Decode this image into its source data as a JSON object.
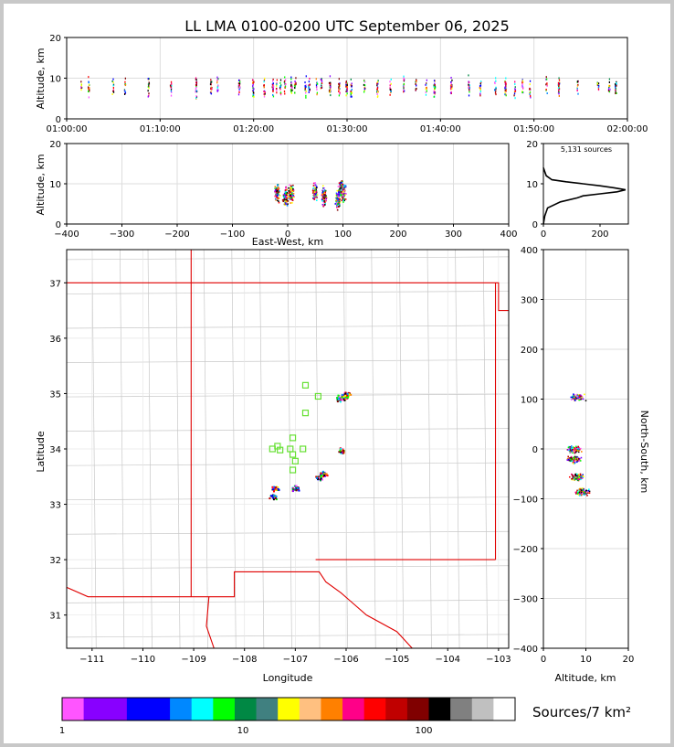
{
  "title": "LL LMA 0100-0200 UTC September 06, 2025",
  "colorbar": {
    "label": "Sources/7 km²",
    "tick_labels": [
      "1",
      "10",
      "100"
    ],
    "colors": [
      "#ff55ff",
      "#8800ff",
      "#8800ff",
      "#0000ff",
      "#0000ff",
      "#0088ff",
      "#00ffff",
      "#00ff00",
      "#008844",
      "#408080",
      "#ffff00",
      "#ffc080",
      "#ff8000",
      "#ff0088",
      "#ff0000",
      "#c00000",
      "#800000",
      "#000000",
      "#808080",
      "#c0c0c0",
      "#ffffff"
    ]
  },
  "chart_data": [
    {
      "id": "time_height",
      "type": "scatter",
      "xlabel": "",
      "ylabel": "Altitude, km",
      "ylim": [
        0,
        20
      ],
      "y_ticks": [
        "0",
        "10",
        "20"
      ],
      "x_ticks": [
        "01:00:00",
        "01:10:00",
        "01:20:00",
        "01:30:00",
        "01:40:00",
        "01:50:00",
        "02:00:00"
      ],
      "xlim_minutes": [
        0,
        60
      ],
      "grid": true,
      "column_minutes": [
        1.5,
        2.3,
        4.9,
        6.2,
        8.7,
        11.1,
        13.8,
        15.4,
        16.1,
        18.4,
        19.9,
        21.1,
        22,
        22.4,
        22.8,
        23.3,
        24,
        24.4,
        25.5,
        25.9,
        26.7,
        27.2,
        28.1,
        29.1,
        29.9,
        30.4,
        31.8,
        33.2,
        34.6,
        36,
        37.3,
        38.4,
        39.3,
        41.1,
        43,
        44.2,
        45.8,
        46.9,
        47.9,
        48.7,
        49.5,
        51.3,
        52.6,
        54.6,
        56.8,
        58,
        58.7
      ]
    },
    {
      "id": "ew_height",
      "type": "scatter",
      "xlabel": "East-West, km",
      "ylabel": "Altitude, km",
      "xlim": [
        -400,
        400
      ],
      "ylim": [
        0,
        20
      ],
      "x_ticks": [
        "−400",
        "−300",
        "−200",
        "−100",
        "0",
        "100",
        "200",
        "300",
        "400"
      ],
      "y_ticks": [
        "0",
        "10",
        "20"
      ],
      "grid": true,
      "clusters": [
        [
          -20,
          8
        ],
        [
          5,
          8
        ],
        [
          -5,
          7
        ],
        [
          48,
          8
        ],
        [
          65,
          7
        ],
        [
          95,
          9
        ],
        [
          90,
          6
        ],
        [
          100,
          8
        ]
      ]
    },
    {
      "id": "altitude_histogram",
      "type": "line",
      "annotation": "5,131 sources",
      "xlim": [
        0,
        300
      ],
      "ylim": [
        0,
        20
      ],
      "x_ticks": [
        "0",
        "200"
      ],
      "y_ticks": [
        "0",
        "10",
        "20"
      ],
      "profile": [
        [
          0,
          0
        ],
        [
          5,
          2
        ],
        [
          15,
          4
        ],
        [
          60,
          5.5
        ],
        [
          120,
          6.5
        ],
        [
          140,
          7
        ],
        [
          200,
          7.5
        ],
        [
          260,
          8
        ],
        [
          290,
          8.5
        ],
        [
          250,
          9
        ],
        [
          200,
          9.5
        ],
        [
          140,
          10
        ],
        [
          80,
          10.5
        ],
        [
          30,
          11
        ],
        [
          10,
          12
        ],
        [
          5,
          13
        ],
        [
          0,
          14
        ]
      ]
    },
    {
      "id": "plan_view",
      "type": "scatter",
      "xlabel": "Longitude",
      "ylabel": "Latitude",
      "xlim": [
        -111.5,
        -102.8
      ],
      "ylim": [
        30.4,
        37.6
      ],
      "x_ticks": [
        "−111",
        "−110",
        "−109",
        "−108",
        "−107",
        "−106",
        "−105",
        "−104",
        "−103"
      ],
      "y_ticks": [
        "31",
        "32",
        "33",
        "34",
        "35",
        "36",
        "37"
      ],
      "grid": true,
      "source_clusters": [
        {
          "lon": -106.05,
          "lat": 34.95
        },
        {
          "lon": -106.15,
          "lat": 34.92
        },
        {
          "lon": -106.0,
          "lat": 35.0
        },
        {
          "lon": -106.1,
          "lat": 33.98
        },
        {
          "lon": -106.45,
          "lat": 33.55
        },
        {
          "lon": -106.55,
          "lat": 33.5
        },
        {
          "lon": -107.4,
          "lat": 33.3
        },
        {
          "lon": -107.45,
          "lat": 33.15
        },
        {
          "lon": -107.0,
          "lat": 33.3
        }
      ],
      "station_markers": [
        {
          "lon": -106.8,
          "lat": 35.15
        },
        {
          "lon": -106.55,
          "lat": 34.95
        },
        {
          "lon": -106.8,
          "lat": 34.65
        },
        {
          "lon": -107.05,
          "lat": 34.2
        },
        {
          "lon": -107.35,
          "lat": 34.05
        },
        {
          "lon": -107.45,
          "lat": 34.0
        },
        {
          "lon": -107.3,
          "lat": 33.98
        },
        {
          "lon": -107.1,
          "lat": 34.0
        },
        {
          "lon": -107.05,
          "lat": 33.9
        },
        {
          "lon": -106.85,
          "lat": 34.0
        },
        {
          "lon": -107.0,
          "lat": 33.78
        },
        {
          "lon": -107.05,
          "lat": 33.62
        }
      ]
    },
    {
      "id": "ns_height",
      "type": "scatter",
      "xlabel": "Altitude, km",
      "ylabel": "North-South, km",
      "xlim": [
        0,
        20
      ],
      "ylim": [
        -400,
        400
      ],
      "x_ticks": [
        "0",
        "10",
        "20"
      ],
      "y_ticks": [
        "−400",
        "−300",
        "−200",
        "−100",
        "0",
        "100",
        "200",
        "300",
        "400"
      ],
      "grid": true,
      "clusters": [
        [
          8,
          105
        ],
        [
          7,
          0
        ],
        [
          8,
          -55
        ],
        [
          7,
          -20
        ],
        [
          9,
          -85
        ]
      ]
    }
  ]
}
